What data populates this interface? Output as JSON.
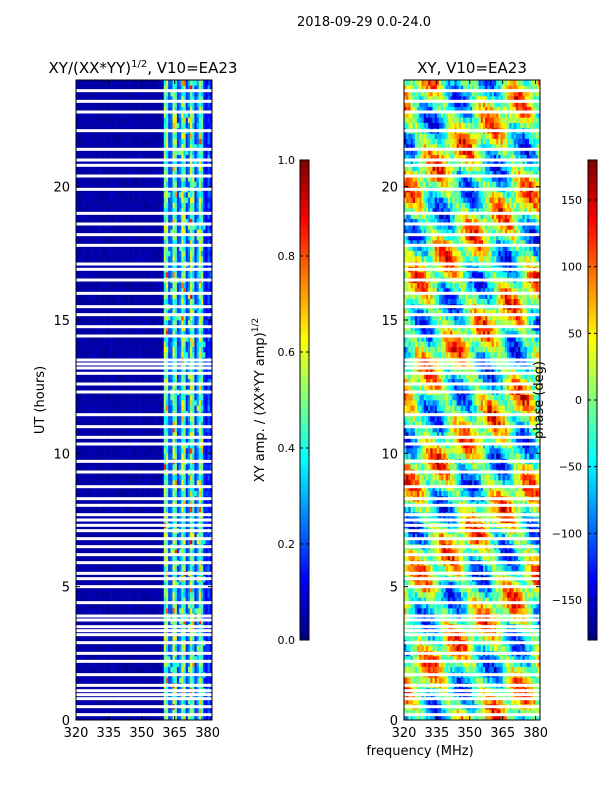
{
  "suptitle": "2018-09-29 0.0-24.0",
  "xlabel_shared": "frequency (MHz)",
  "colors": {
    "jet": [
      "#00007f",
      "#0000ff",
      "#007fff",
      "#00ffff",
      "#7fff7f",
      "#ffff00",
      "#ff7f00",
      "#ff0000",
      "#7f0000"
    ],
    "flag": "#ffffff",
    "axis": "#000000"
  },
  "chart_data": [
    {
      "type": "heatmap",
      "title_text": "XY/(XX*YY)",
      "title_superscript": "1/2",
      "title_suffix": ", V10=EA23",
      "xlabel": "",
      "ylabel": "UT (hours)",
      "xlim": [
        320,
        382
      ],
      "ylim": [
        0,
        24
      ],
      "xticks": [
        320,
        335,
        350,
        365,
        380
      ],
      "xtick_labels": [
        "320",
        "335",
        "350",
        "365",
        "380"
      ],
      "yticks": [
        0,
        5,
        10,
        15,
        20
      ],
      "ytick_labels": [
        "0",
        "5",
        "10",
        "15",
        "20"
      ],
      "colorbar": {
        "label_text": "XY amp. / (XX*YY amp)",
        "label_superscript": "1/2",
        "range": [
          0.0,
          1.0
        ],
        "ticks": [
          0.0,
          0.2,
          0.4,
          0.6,
          0.8,
          1.0
        ],
        "tick_labels": [
          "0.0",
          "0.2",
          "0.4",
          "0.6",
          "0.8",
          "1.0"
        ]
      },
      "description_values": {
        "low_band_mhz": [
          320,
          360
        ],
        "low_band_value": 0.02,
        "high_band_mhz": [
          360,
          382
        ],
        "high_band_value_range": [
          0.2,
          0.9
        ]
      }
    },
    {
      "type": "heatmap",
      "title_text": "XY, V10=EA23",
      "xlabel": "frequency (MHz)",
      "ylabel": "",
      "xlim": [
        320,
        382
      ],
      "ylim": [
        0,
        24
      ],
      "xticks": [
        320,
        335,
        350,
        365,
        380
      ],
      "xtick_labels": [
        "320",
        "335",
        "350",
        "365",
        "380"
      ],
      "yticks": [
        0,
        5,
        10,
        15,
        20
      ],
      "ytick_labels": [
        "0",
        "5",
        "10",
        "15",
        "20"
      ],
      "colorbar": {
        "label_text": "phase (deg)",
        "range": [
          -180,
          180
        ],
        "ticks": [
          -150,
          -100,
          -50,
          0,
          50,
          100,
          150
        ],
        "tick_labels": [
          "−150",
          "−100",
          "−50",
          "0",
          "50",
          "100",
          "150"
        ]
      },
      "description_values": {
        "phase_range_deg": [
          -180,
          180
        ]
      }
    }
  ],
  "flagged_ut_hours": [
    0.2,
    0.5,
    0.8,
    0.95,
    1.1,
    1.3,
    1.7,
    2.2,
    2.5,
    2.9,
    3.2,
    3.35,
    3.5,
    3.75,
    3.9,
    4.4,
    5.0,
    5.3,
    5.5,
    5.9,
    6.2,
    6.5,
    6.8,
    7.1,
    7.3,
    7.5,
    7.7,
    8.05,
    8.3,
    8.75,
    9.3,
    9.7,
    10.35,
    10.6,
    11.0,
    11.45,
    12.3,
    12.6,
    13.0,
    13.2,
    13.35,
    13.5,
    14.4,
    14.75,
    15.2,
    15.5,
    16.0,
    16.5,
    16.9,
    17.1,
    17.8,
    18.2,
    18.6,
    19.0,
    19.9,
    20.4,
    20.8,
    21.0,
    21.4,
    22.1,
    22.8,
    23.2,
    23.6
  ]
}
